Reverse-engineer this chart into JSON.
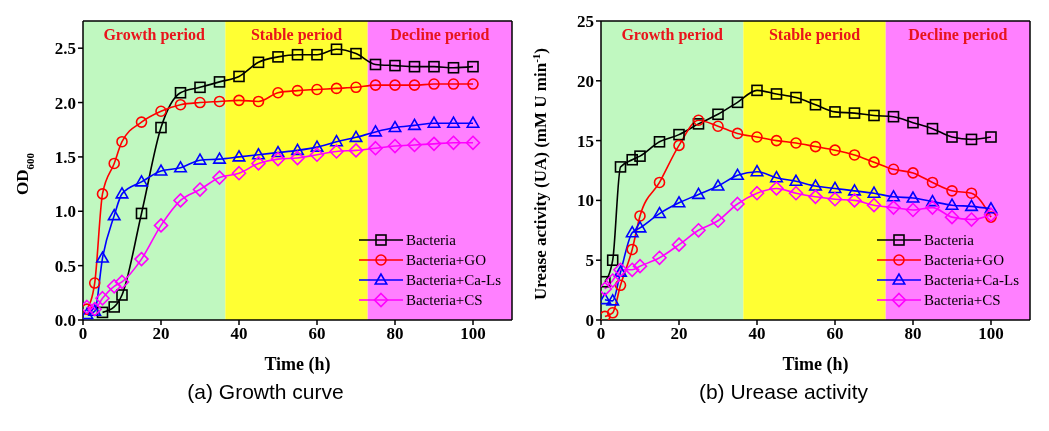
{
  "chart_data": [
    {
      "type": "line",
      "ylabel": "OD$_{600}$",
      "xlabel": "Time (h)",
      "xlim": [
        0,
        110
      ],
      "xticks": [
        0,
        20,
        40,
        60,
        80,
        100
      ],
      "ylim": [
        0,
        2.75
      ],
      "yticks": [
        {
          "value": 0,
          "label": "0.0"
        },
        {
          "value": 0.5,
          "label": "0.5"
        },
        {
          "value": 1,
          "label": "1.0"
        },
        {
          "value": 1.5,
          "label": "1.5"
        },
        {
          "value": 2,
          "label": "2.0"
        },
        {
          "value": 2.5,
          "label": "2.5"
        }
      ],
      "grid": false,
      "legend": "bottom right",
      "line_style": "solid",
      "x": [
        1,
        3,
        5,
        8,
        10,
        15,
        20,
        25,
        30,
        35,
        40,
        45,
        50,
        55,
        60,
        65,
        70,
        75,
        80,
        85,
        90,
        95,
        100
      ],
      "series": [
        {
          "name": "Bacteria",
          "color": "#000000",
          "marker": "square",
          "values": [
            null,
            null,
            0.07,
            0.12,
            0.23,
            0.98,
            1.77,
            2.09,
            2.14,
            2.19,
            2.24,
            2.37,
            2.42,
            2.44,
            2.44,
            2.49,
            2.45,
            2.35,
            2.34,
            2.33,
            2.33,
            2.32,
            2.33
          ]
        },
        {
          "name": "Bacteria+GO",
          "color": "#ff0000",
          "marker": "circle",
          "values": [
            0.1,
            0.34,
            1.16,
            1.44,
            1.64,
            1.82,
            1.92,
            1.98,
            2.0,
            2.01,
            2.02,
            2.01,
            2.09,
            2.11,
            2.12,
            2.13,
            2.14,
            2.16,
            2.16,
            2.16,
            2.17,
            2.17,
            2.17
          ]
        },
        {
          "name": "Bacteria+Ca-Ls",
          "color": "#0000ff",
          "marker": "triangle",
          "values": [
            0.05,
            0.08,
            0.57,
            0.96,
            1.16,
            1.27,
            1.37,
            1.4,
            1.47,
            1.48,
            1.5,
            1.52,
            1.54,
            1.56,
            1.59,
            1.64,
            1.68,
            1.73,
            1.77,
            1.79,
            1.81,
            1.81,
            1.81
          ]
        },
        {
          "name": "Bacteria+CS",
          "color": "#ff00ff",
          "marker": "diamond",
          "values": [
            0.12,
            0.1,
            0.2,
            0.31,
            0.35,
            0.56,
            0.87,
            1.1,
            1.2,
            1.31,
            1.35,
            1.44,
            1.48,
            1.49,
            1.52,
            1.55,
            1.56,
            1.58,
            1.6,
            1.61,
            1.62,
            1.63,
            1.63
          ]
        }
      ],
      "bands": [
        {
          "axis": "x",
          "from": 0,
          "to": 36.5,
          "label": "Growth period",
          "color": "#c0f8c0"
        },
        {
          "axis": "x",
          "from": 36.5,
          "to": 73,
          "label": "Stable period",
          "color": "#ffff33"
        },
        {
          "axis": "x",
          "from": 73,
          "to": 110,
          "label": "Decline period",
          "color": "#ff80ff"
        }
      ],
      "annotations": [
        "(a) Growth curve"
      ]
    },
    {
      "type": "line",
      "ylabel": "Urease activity (UA) (mM U min$^{-1}$)",
      "xlabel": "Time (h)",
      "xlim": [
        0,
        110
      ],
      "xticks": [
        0,
        20,
        40,
        60,
        80,
        100
      ],
      "ylim": [
        0,
        25
      ],
      "yticks": [
        0,
        5,
        10,
        15,
        20,
        25
      ],
      "grid": false,
      "legend": "bottom right",
      "line_style": "solid",
      "x": [
        1,
        3,
        5,
        8,
        10,
        15,
        20,
        25,
        30,
        35,
        40,
        45,
        50,
        55,
        60,
        65,
        70,
        75,
        80,
        85,
        90,
        95,
        100
      ],
      "series": [
        {
          "name": "Bacteria",
          "color": "#000000",
          "marker": "square",
          "values": [
            3.2,
            5.0,
            12.8,
            13.4,
            13.7,
            14.9,
            15.5,
            16.4,
            17.2,
            18.2,
            19.2,
            18.9,
            18.6,
            18.0,
            17.4,
            17.3,
            17.1,
            17.0,
            16.5,
            16.0,
            15.3,
            15.1,
            15.3
          ]
        },
        {
          "name": "Bacteria+GO",
          "color": "#ff0000",
          "marker": "circle",
          "values": [
            0.3,
            0.6,
            2.9,
            5.9,
            8.7,
            11.5,
            14.6,
            16.7,
            16.2,
            15.6,
            15.3,
            15.0,
            14.8,
            14.5,
            14.2,
            13.8,
            13.2,
            12.6,
            12.3,
            11.5,
            10.8,
            10.6,
            8.6
          ]
        },
        {
          "name": "Bacteria+Ca-Ls",
          "color": "#0000ff",
          "marker": "triangle",
          "values": [
            1.7,
            1.6,
            4.0,
            7.3,
            7.7,
            8.9,
            9.8,
            10.5,
            11.2,
            12.1,
            12.4,
            11.9,
            11.6,
            11.2,
            11.0,
            10.8,
            10.6,
            10.3,
            10.2,
            9.9,
            9.6,
            9.5,
            9.3
          ]
        },
        {
          "name": "Bacteria+CS",
          "color": "#ff00ff",
          "marker": "diamond",
          "values": [
            2.6,
            3.3,
            4.2,
            4.2,
            4.5,
            5.2,
            6.3,
            7.5,
            8.3,
            9.7,
            10.6,
            11.0,
            10.6,
            10.3,
            10.1,
            10.0,
            9.6,
            9.4,
            9.2,
            9.4,
            8.6,
            8.4,
            8.8
          ]
        }
      ],
      "bands": [
        {
          "axis": "x",
          "from": 0,
          "to": 36.5,
          "label": "Growth period",
          "color": "#c0f8c0"
        },
        {
          "axis": "x",
          "from": 36.5,
          "to": 73,
          "label": "Stable period",
          "color": "#ffff33"
        },
        {
          "axis": "x",
          "from": 73,
          "to": 110,
          "label": "Decline period",
          "color": "#ff80ff"
        }
      ],
      "annotations": [
        "(b) Urease activity"
      ]
    }
  ]
}
